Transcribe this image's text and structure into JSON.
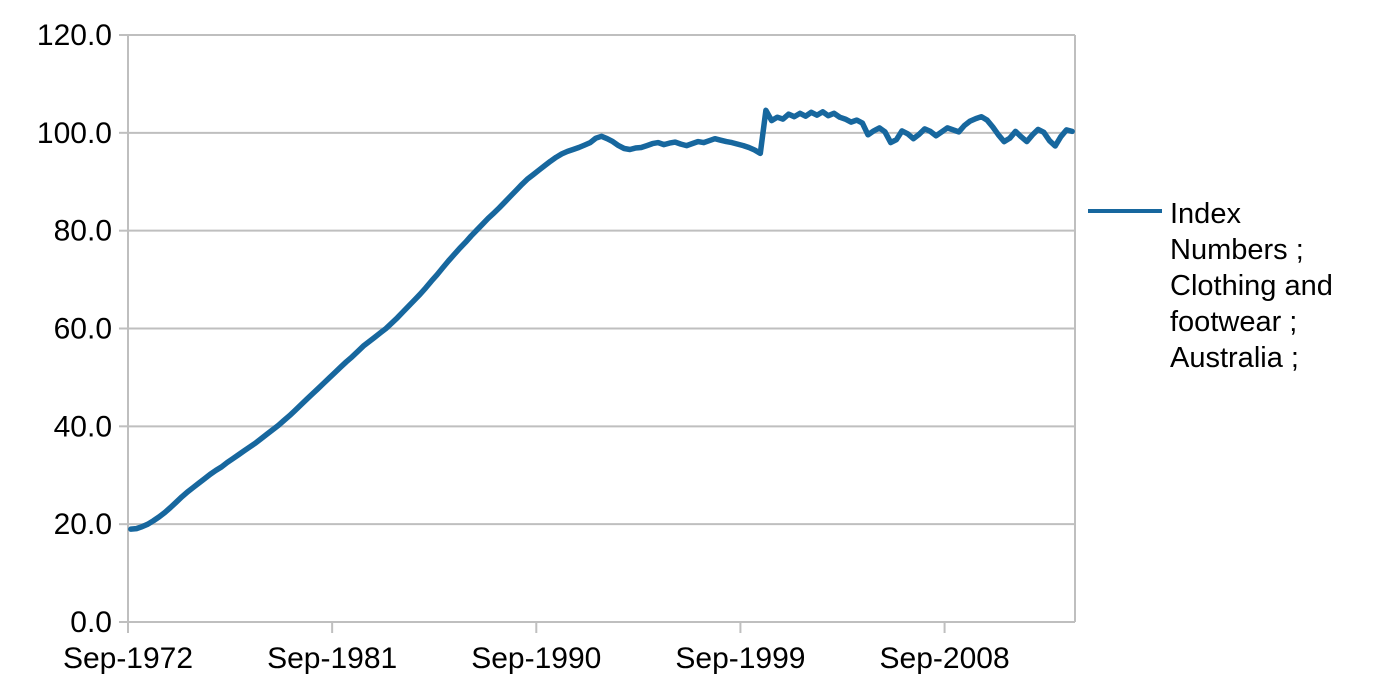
{
  "chart_data": {
    "type": "line",
    "title": "",
    "xlabel": "",
    "ylabel": "",
    "x_start": "Sep-1972",
    "x_end": "Mar-2014",
    "x_frequency": "quarterly",
    "x_tick_labels": [
      "Sep-1972",
      "Sep-1981",
      "Sep-1990",
      "Sep-1999",
      "Sep-2008"
    ],
    "x_tick_every": 36,
    "y_ticks": [
      0,
      20,
      40,
      60,
      80,
      100,
      120
    ],
    "y_tick_decimals": 1,
    "ylim": [
      0,
      120
    ],
    "grid": "horizontal",
    "grid_color": "#BFBFBF",
    "axis_color": "#BFBFBF",
    "legend_position": "right",
    "series": [
      {
        "name": "Index Numbers ; Clothing and footwear ; Australia ;",
        "color": "#17679E",
        "stroke_width": 5.5,
        "values": [
          19.0,
          19.1,
          19.5,
          20.0,
          20.7,
          21.5,
          22.4,
          23.4,
          24.5,
          25.6,
          26.6,
          27.5,
          28.4,
          29.3,
          30.2,
          31.0,
          31.7,
          32.6,
          33.4,
          34.2,
          35.0,
          35.8,
          36.6,
          37.5,
          38.4,
          39.3,
          40.2,
          41.2,
          42.2,
          43.3,
          44.4,
          45.5,
          46.6,
          47.7,
          48.8,
          49.9,
          51.0,
          52.1,
          53.2,
          54.2,
          55.3,
          56.4,
          57.3,
          58.2,
          59.1,
          60.0,
          61.1,
          62.2,
          63.4,
          64.6,
          65.8,
          67.0,
          68.3,
          69.7,
          71.0,
          72.4,
          73.8,
          75.1,
          76.4,
          77.6,
          78.9,
          80.1,
          81.3,
          82.5,
          83.6,
          84.7,
          85.9,
          87.1,
          88.3,
          89.5,
          90.6,
          91.5,
          92.4,
          93.3,
          94.2,
          95.0,
          95.7,
          96.2,
          96.6,
          97.0,
          97.5,
          98.0,
          98.9,
          99.3,
          98.8,
          98.2,
          97.4,
          96.8,
          96.6,
          96.9,
          97.0,
          97.4,
          97.8,
          98.0,
          97.6,
          97.9,
          98.1,
          97.7,
          97.4,
          97.8,
          98.2,
          98.0,
          98.4,
          98.8,
          98.5,
          98.2,
          98.0,
          97.7,
          97.4,
          97.0,
          96.5,
          95.8,
          104.6,
          102.5,
          103.2,
          102.8,
          103.8,
          103.3,
          104.0,
          103.4,
          104.2,
          103.6,
          104.3,
          103.5,
          104.0,
          103.2,
          102.8,
          102.2,
          102.6,
          102.0,
          99.6,
          100.4,
          101.0,
          100.2,
          98.0,
          98.6,
          100.4,
          99.8,
          98.8,
          99.7,
          100.8,
          100.3,
          99.4,
          100.2,
          101.0,
          100.6,
          100.2,
          101.5,
          102.4,
          102.9,
          103.3,
          102.6,
          101.2,
          99.6,
          98.2,
          98.9,
          100.3,
          99.2,
          98.2,
          99.6,
          100.7,
          100.1,
          98.4,
          97.3,
          99.2,
          100.6,
          100.3
        ]
      }
    ]
  },
  "legend": {
    "lines": [
      "Index",
      "Numbers ;",
      "Clothing and",
      "footwear ;",
      "Australia ;"
    ]
  }
}
